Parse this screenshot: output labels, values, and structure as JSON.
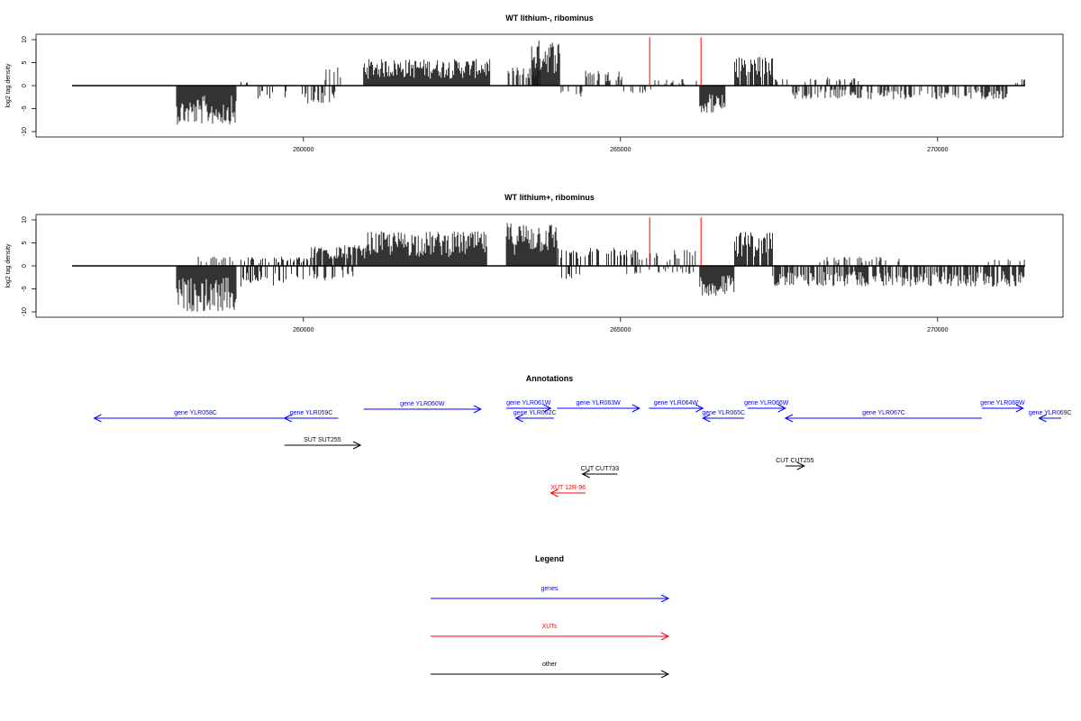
{
  "chart_data": [
    {
      "type": "bar",
      "title": "WT lithium-, ribominus",
      "ylabel": "log2 tag density",
      "xlim": [
        258000,
        270000
      ],
      "ylim": [
        -10,
        10
      ],
      "yticks": [
        10,
        5,
        0,
        -5,
        -10
      ],
      "xticks": [
        260000,
        265000,
        270000
      ],
      "grid": false,
      "bar_color": "#000000",
      "segments": [
        {
          "from": 258000,
          "to": 258950,
          "sign": -1,
          "mag": 8.5,
          "density": 1.0
        },
        {
          "from": 259000,
          "to": 259150,
          "sign": 1,
          "mag": 1.0,
          "density": 0.3
        },
        {
          "from": 259200,
          "to": 260000,
          "sign": -1,
          "mag": 3.0,
          "density": 0.25
        },
        {
          "from": 260000,
          "to": 260500,
          "sign": -1,
          "mag": 4.0,
          "density": 0.6
        },
        {
          "from": 260300,
          "to": 260700,
          "sign": 1,
          "mag": 4.0,
          "density": 0.3
        },
        {
          "from": 260950,
          "to": 262950,
          "sign": 1,
          "mag": 5.8,
          "density": 1.0
        },
        {
          "from": 263200,
          "to": 263750,
          "sign": 1,
          "mag": 4.0,
          "density": 0.7
        },
        {
          "from": 263600,
          "to": 264050,
          "sign": 1,
          "mag": 10.0,
          "density": 1.0
        },
        {
          "from": 264050,
          "to": 264400,
          "sign": -1,
          "mag": 2.5,
          "density": 0.2
        },
        {
          "from": 264450,
          "to": 265050,
          "sign": 1,
          "mag": 3.5,
          "density": 0.35
        },
        {
          "from": 265050,
          "to": 265500,
          "sign": -1,
          "mag": 2.0,
          "density": 0.25
        },
        {
          "from": 265500,
          "to": 266200,
          "sign": 1,
          "mag": 1.5,
          "density": 0.25
        },
        {
          "from": 266250,
          "to": 266650,
          "sign": -1,
          "mag": 6.0,
          "density": 1.0
        },
        {
          "from": 266800,
          "to": 267400,
          "sign": 1,
          "mag": 6.5,
          "density": 0.8
        },
        {
          "from": 267400,
          "to": 268800,
          "sign": 1,
          "mag": 2.0,
          "density": 0.2
        },
        {
          "from": 267700,
          "to": 271100,
          "sign": -1,
          "mag": 3.0,
          "density": 0.5
        },
        {
          "from": 271200,
          "to": 271500,
          "sign": 1,
          "mag": 1.5,
          "density": 0.2
        },
        {
          "from": 271600,
          "to": 272900,
          "sign": -1,
          "mag": 4.0,
          "density": 0.8
        }
      ],
      "spikes_red": [
        {
          "x": 265460,
          "y": 10.5
        },
        {
          "x": 266270,
          "y": 10.5
        }
      ]
    },
    {
      "type": "bar",
      "title": "WT lithium+, ribominus",
      "ylabel": "log2 tag density",
      "xlim": [
        258000,
        270000
      ],
      "ylim": [
        -10,
        10
      ],
      "yticks": [
        10,
        5,
        0,
        -5,
        -10
      ],
      "xticks": [
        260000,
        265000,
        270000
      ],
      "grid": false,
      "bar_color": "#000000",
      "segments": [
        {
          "from": 258000,
          "to": 258950,
          "sign": -1,
          "mag": 10.0,
          "density": 1.0
        },
        {
          "from": 258300,
          "to": 258950,
          "sign": 1,
          "mag": 2.0,
          "density": 0.3
        },
        {
          "from": 259000,
          "to": 260000,
          "sign": -1,
          "mag": 4.5,
          "density": 0.5
        },
        {
          "from": 259000,
          "to": 260100,
          "sign": 1,
          "mag": 2.0,
          "density": 0.35
        },
        {
          "from": 260100,
          "to": 261000,
          "sign": 1,
          "mag": 4.5,
          "density": 0.8
        },
        {
          "from": 260100,
          "to": 260800,
          "sign": -1,
          "mag": 3.5,
          "density": 0.4
        },
        {
          "from": 261000,
          "to": 262900,
          "sign": 1,
          "mag": 7.5,
          "density": 1.0
        },
        {
          "from": 263200,
          "to": 264000,
          "sign": 1,
          "mag": 9.5,
          "density": 1.0
        },
        {
          "from": 264000,
          "to": 264400,
          "sign": -1,
          "mag": 3.0,
          "density": 0.35
        },
        {
          "from": 264000,
          "to": 265100,
          "sign": 1,
          "mag": 4.0,
          "density": 0.4
        },
        {
          "from": 265100,
          "to": 266200,
          "sign": 1,
          "mag": 3.5,
          "density": 0.35
        },
        {
          "from": 265100,
          "to": 266200,
          "sign": -1,
          "mag": 2.0,
          "density": 0.25
        },
        {
          "from": 266250,
          "to": 266800,
          "sign": -1,
          "mag": 6.5,
          "density": 1.0
        },
        {
          "from": 266800,
          "to": 267400,
          "sign": 1,
          "mag": 7.5,
          "density": 0.85
        },
        {
          "from": 267400,
          "to": 271500,
          "sign": -1,
          "mag": 4.5,
          "density": 0.7
        },
        {
          "from": 268000,
          "to": 269400,
          "sign": 1,
          "mag": 2.0,
          "density": 0.3
        },
        {
          "from": 270800,
          "to": 271500,
          "sign": 1,
          "mag": 1.5,
          "density": 0.2
        },
        {
          "from": 271550,
          "to": 272900,
          "sign": -1,
          "mag": 6.0,
          "density": 0.9
        },
        {
          "from": 271550,
          "to": 272900,
          "sign": 1,
          "mag": 2.5,
          "density": 0.4
        }
      ],
      "spikes_red": [
        {
          "x": 265460,
          "y": 10.5
        },
        {
          "x": 266270,
          "y": 10.5
        }
      ]
    }
  ],
  "annotations": {
    "title": "Annotations",
    "colors": {
      "gene": "#0000ff",
      "xut": "#ff0000",
      "other": "#000000"
    },
    "features": [
      {
        "label": "gene YLR058C",
        "kind": "gene",
        "from": 256700,
        "to": 259900,
        "strand": "-"
      },
      {
        "label": "gene YLR059C",
        "kind": "gene",
        "from": 259700,
        "to": 260550,
        "strand": "-"
      },
      {
        "label": "gene YLR060W",
        "kind": "gene",
        "from": 260950,
        "to": 262800,
        "strand": "+"
      },
      {
        "label": "gene YLR061W",
        "kind": "gene",
        "from": 263200,
        "to": 263900,
        "strand": "+"
      },
      {
        "label": "gene YLR062C",
        "kind": "gene",
        "from": 263350,
        "to": 263950,
        "strand": "-"
      },
      {
        "label": "gene YLR063W",
        "kind": "gene",
        "from": 264000,
        "to": 265300,
        "strand": "+"
      },
      {
        "label": "gene YLR064W",
        "kind": "gene",
        "from": 265450,
        "to": 266300,
        "strand": "+"
      },
      {
        "label": "gene YLR065C",
        "kind": "gene",
        "from": 266300,
        "to": 266950,
        "strand": "-"
      },
      {
        "label": "gene YLR066W",
        "kind": "gene",
        "from": 267000,
        "to": 267600,
        "strand": "+"
      },
      {
        "label": "gene YLR067C",
        "kind": "gene",
        "from": 267600,
        "to": 270700,
        "strand": "-"
      },
      {
        "label": "gene YLR068W",
        "kind": "gene",
        "from": 270700,
        "to": 271350,
        "strand": "+"
      },
      {
        "label": "gene YLR069C",
        "kind": "gene",
        "from": 271600,
        "to": 274500,
        "strand": "-"
      },
      {
        "label": "SUT SUT255",
        "kind": "other",
        "from": 259700,
        "to": 260900,
        "strand": "+"
      },
      {
        "label": "CUT CUT733",
        "kind": "other",
        "from": 264400,
        "to": 264950,
        "strand": "-"
      },
      {
        "label": "CUT CUT255",
        "kind": "other",
        "from": 267600,
        "to": 267900,
        "strand": "+"
      },
      {
        "label": "XUT 12R-96",
        "kind": "xut",
        "from": 263900,
        "to": 264450,
        "strand": "-"
      }
    ]
  },
  "legend": {
    "title": "Legend",
    "items": [
      {
        "label": "genes",
        "color": "#0000ff"
      },
      {
        "label": "XUTs",
        "color": "#ff0000"
      },
      {
        "label": "other",
        "color": "#000000"
      }
    ]
  }
}
